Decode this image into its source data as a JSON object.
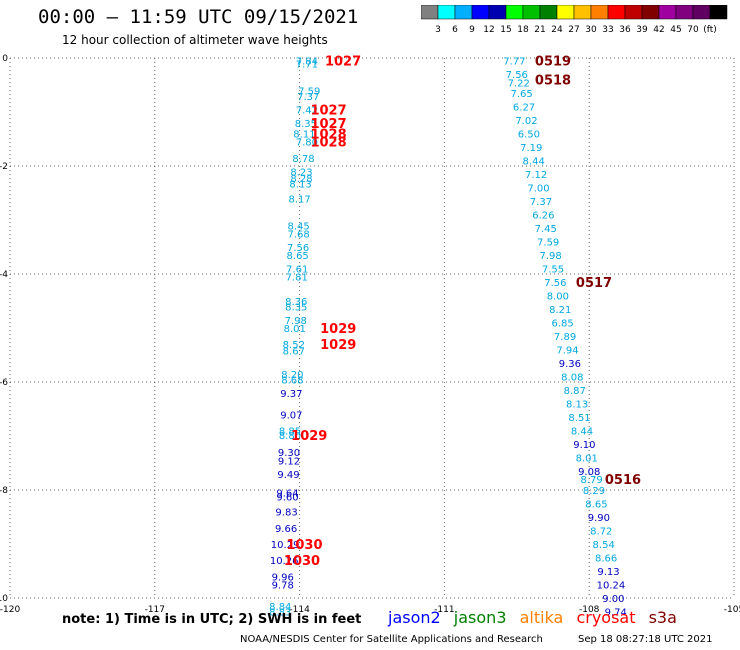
{
  "header": {
    "title": "00:00 – 11:59 UTC 09/15/2021",
    "subtitle": "12 hour collection of altimeter wave heights"
  },
  "colorbar": {
    "colors": [
      "#808080",
      "#00ffff",
      "#00b0ff",
      "#0000ff",
      "#0000b0",
      "#00ff00",
      "#00c000",
      "#008000",
      "#ffff00",
      "#ffc000",
      "#ff8000",
      "#ff0000",
      "#c00000",
      "#800000",
      "#a000a0",
      "#800080",
      "#600060",
      "#000000"
    ],
    "labels": [
      "3",
      "6",
      "9",
      "12",
      "15",
      "18",
      "21",
      "24",
      "27",
      "30",
      "33",
      "36",
      "39",
      "42",
      "45",
      "70",
      "(ft)"
    ]
  },
  "footer": {
    "note": "note: 1) Time is in UTC; 2) SWH is in feet",
    "satellites": [
      {
        "name": "jason2",
        "color": "#0000ff"
      },
      {
        "name": "jason3",
        "color": "#008000"
      },
      {
        "name": "altika",
        "color": "#ff8000"
      },
      {
        "name": "cryosat",
        "color": "#ff0000"
      },
      {
        "name": "s3a",
        "color": "#800000"
      }
    ],
    "credit": "NOAA/NESDIS Center for Satellite Applications and Research",
    "timestamp": "Sep 18 08:27:18 UTC 2021"
  },
  "chart_data": {
    "type": "scatter",
    "title": "00:00 – 11:59 UTC 09/15/2021",
    "xlim": [
      -120,
      -105
    ],
    "ylim": [
      0,
      -10
    ],
    "x_ticks": [
      -120,
      -117,
      -114,
      -111,
      -108,
      -105
    ],
    "y_ticks": [
      0,
      -2,
      -4,
      -6,
      -8,
      -10
    ],
    "grid": "dotted",
    "colors": {
      "light": "#00a8e0",
      "dark": "#0000c0",
      "time": "#ff0000",
      "time_dark": "#800000"
    },
    "series": [
      {
        "name": "track-west",
        "points": [
          {
            "x": -113.85,
            "y": -0.05,
            "v": "7.84",
            "c": "light"
          },
          {
            "x": -113.85,
            "y": -0.1,
            "v": "7.71",
            "c": "light"
          },
          {
            "x": -113.8,
            "y": -0.6,
            "v": "7.59",
            "c": "light"
          },
          {
            "x": -113.82,
            "y": -0.7,
            "v": "7.37",
            "c": "light"
          },
          {
            "x": -113.85,
            "y": -0.95,
            "v": "7.42",
            "c": "light"
          },
          {
            "x": -113.87,
            "y": -1.2,
            "v": "8.35",
            "c": "light"
          },
          {
            "x": -113.9,
            "y": -1.4,
            "v": "8.11",
            "c": "light"
          },
          {
            "x": -113.85,
            "y": -1.55,
            "v": "7.80",
            "c": "light"
          },
          {
            "x": -113.92,
            "y": -1.85,
            "v": "8.78",
            "c": "light"
          },
          {
            "x": -113.96,
            "y": -2.1,
            "v": "8.23",
            "c": "light"
          },
          {
            "x": -113.96,
            "y": -2.22,
            "v": "8.28",
            "c": "light"
          },
          {
            "x": -113.98,
            "y": -2.32,
            "v": "8.13",
            "c": "light"
          },
          {
            "x": -114.0,
            "y": -2.6,
            "v": "8.17",
            "c": "light"
          },
          {
            "x": -114.02,
            "y": -3.1,
            "v": "8.45",
            "c": "light"
          },
          {
            "x": -114.02,
            "y": -3.25,
            "v": "7.68",
            "c": "light"
          },
          {
            "x": -114.03,
            "y": -3.5,
            "v": "7.56",
            "c": "light"
          },
          {
            "x": -114.04,
            "y": -3.65,
            "v": "8.65",
            "c": "light"
          },
          {
            "x": -114.05,
            "y": -3.9,
            "v": "7.61",
            "c": "light"
          },
          {
            "x": -114.06,
            "y": -4.05,
            "v": "7.81",
            "c": "light"
          },
          {
            "x": -114.07,
            "y": -4.5,
            "v": "8.36",
            "c": "light"
          },
          {
            "x": -114.07,
            "y": -4.6,
            "v": "8.35",
            "c": "light"
          },
          {
            "x": -114.08,
            "y": -4.85,
            "v": "7.98",
            "c": "light"
          },
          {
            "x": -114.1,
            "y": -5.0,
            "v": "8.01",
            "c": "light"
          },
          {
            "x": -114.12,
            "y": -5.3,
            "v": "8.52",
            "c": "light"
          },
          {
            "x": -114.12,
            "y": -5.42,
            "v": "8.67",
            "c": "light"
          },
          {
            "x": -114.15,
            "y": -5.85,
            "v": "8.20",
            "c": "light"
          },
          {
            "x": -114.15,
            "y": -5.95,
            "v": "8.68",
            "c": "light"
          },
          {
            "x": -114.17,
            "y": -6.2,
            "v": "9.37",
            "c": "dark"
          },
          {
            "x": -114.17,
            "y": -6.6,
            "v": "9.07",
            "c": "dark"
          },
          {
            "x": -114.2,
            "y": -6.9,
            "v": "8.85",
            "c": "light"
          },
          {
            "x": -114.2,
            "y": -6.98,
            "v": "8.80",
            "c": "light"
          },
          {
            "x": -114.22,
            "y": -7.3,
            "v": "9.30",
            "c": "dark"
          },
          {
            "x": -114.22,
            "y": -7.45,
            "v": "9.12",
            "c": "dark"
          },
          {
            "x": -114.23,
            "y": -7.7,
            "v": "9.49",
            "c": "dark"
          },
          {
            "x": -114.25,
            "y": -8.05,
            "v": "9.64",
            "c": "dark"
          },
          {
            "x": -114.25,
            "y": -8.12,
            "v": "9.60",
            "c": "dark"
          },
          {
            "x": -114.27,
            "y": -8.4,
            "v": "9.83",
            "c": "dark"
          },
          {
            "x": -114.28,
            "y": -8.7,
            "v": "9.66",
            "c": "dark"
          },
          {
            "x": -114.3,
            "y": -9.0,
            "v": "10.29",
            "c": "dark"
          },
          {
            "x": -114.32,
            "y": -9.3,
            "v": "10.26",
            "c": "dark"
          },
          {
            "x": -114.35,
            "y": -9.6,
            "v": "9.96",
            "c": "dark"
          },
          {
            "x": -114.35,
            "y": -9.75,
            "v": "9.78",
            "c": "dark"
          },
          {
            "x": -114.4,
            "y": -10.15,
            "v": "8.84",
            "c": "light"
          },
          {
            "x": -114.4,
            "y": -10.25,
            "v": "8.83",
            "c": "light"
          }
        ]
      },
      {
        "name": "track-east",
        "points": [
          {
            "x": -109.55,
            "y": -0.05,
            "v": "7.77",
            "c": "light"
          },
          {
            "x": -109.5,
            "y": -0.3,
            "v": "7.56",
            "c": "light"
          },
          {
            "x": -109.46,
            "y": -0.45,
            "v": "7.22",
            "c": "light"
          },
          {
            "x": -109.4,
            "y": -0.65,
            "v": "7.65",
            "c": "light"
          },
          {
            "x": -109.35,
            "y": -0.9,
            "v": "6.27",
            "c": "light"
          },
          {
            "x": -109.3,
            "y": -1.15,
            "v": "7.02",
            "c": "light"
          },
          {
            "x": -109.25,
            "y": -1.4,
            "v": "6.50",
            "c": "light"
          },
          {
            "x": -109.2,
            "y": -1.65,
            "v": "7.19",
            "c": "light"
          },
          {
            "x": -109.15,
            "y": -1.9,
            "v": "8.44",
            "c": "light"
          },
          {
            "x": -109.1,
            "y": -2.15,
            "v": "7.12",
            "c": "light"
          },
          {
            "x": -109.05,
            "y": -2.4,
            "v": "7.00",
            "c": "light"
          },
          {
            "x": -109.0,
            "y": -2.65,
            "v": "7.37",
            "c": "light"
          },
          {
            "x": -108.95,
            "y": -2.9,
            "v": "6.26",
            "c": "light"
          },
          {
            "x": -108.9,
            "y": -3.15,
            "v": "7.45",
            "c": "light"
          },
          {
            "x": -108.85,
            "y": -3.4,
            "v": "7.59",
            "c": "light"
          },
          {
            "x": -108.8,
            "y": -3.65,
            "v": "7.98",
            "c": "light"
          },
          {
            "x": -108.75,
            "y": -3.9,
            "v": "7.55",
            "c": "light"
          },
          {
            "x": -108.7,
            "y": -4.15,
            "v": "7.56",
            "c": "light"
          },
          {
            "x": -108.65,
            "y": -4.4,
            "v": "8.00",
            "c": "light"
          },
          {
            "x": -108.6,
            "y": -4.65,
            "v": "8.21",
            "c": "light"
          },
          {
            "x": -108.55,
            "y": -4.9,
            "v": "6.85",
            "c": "light"
          },
          {
            "x": -108.5,
            "y": -5.15,
            "v": "7.89",
            "c": "light"
          },
          {
            "x": -108.45,
            "y": -5.4,
            "v": "7.94",
            "c": "light"
          },
          {
            "x": -108.4,
            "y": -5.65,
            "v": "9.36",
            "c": "dark"
          },
          {
            "x": -108.35,
            "y": -5.9,
            "v": "8.08",
            "c": "light"
          },
          {
            "x": -108.3,
            "y": -6.15,
            "v": "8.87",
            "c": "light"
          },
          {
            "x": -108.25,
            "y": -6.4,
            "v": "8.13",
            "c": "light"
          },
          {
            "x": -108.2,
            "y": -6.65,
            "v": "8.51",
            "c": "light"
          },
          {
            "x": -108.15,
            "y": -6.9,
            "v": "8.44",
            "c": "light"
          },
          {
            "x": -108.1,
            "y": -7.15,
            "v": "9.10",
            "c": "dark"
          },
          {
            "x": -108.05,
            "y": -7.4,
            "v": "8.01",
            "c": "light"
          },
          {
            "x": -108.0,
            "y": -7.65,
            "v": "9.08",
            "c": "dark"
          },
          {
            "x": -107.95,
            "y": -7.8,
            "v": "8.79",
            "c": "light"
          },
          {
            "x": -107.9,
            "y": -8.0,
            "v": "8.29",
            "c": "light"
          },
          {
            "x": -107.85,
            "y": -8.25,
            "v": "8.65",
            "c": "light"
          },
          {
            "x": -107.8,
            "y": -8.5,
            "v": "9.90",
            "c": "dark"
          },
          {
            "x": -107.75,
            "y": -8.75,
            "v": "8.72",
            "c": "light"
          },
          {
            "x": -107.7,
            "y": -9.0,
            "v": "8.54",
            "c": "light"
          },
          {
            "x": -107.65,
            "y": -9.25,
            "v": "8.66",
            "c": "light"
          },
          {
            "x": -107.6,
            "y": -9.5,
            "v": "9.13",
            "c": "dark"
          },
          {
            "x": -107.55,
            "y": -9.75,
            "v": "10.24",
            "c": "dark"
          },
          {
            "x": -107.5,
            "y": -10.0,
            "v": "9.00",
            "c": "dark"
          },
          {
            "x": -107.45,
            "y": -10.25,
            "v": "9.74",
            "c": "dark"
          }
        ]
      }
    ],
    "time_labels": [
      {
        "x": -113.1,
        "y": -0.05,
        "v": "1027",
        "c": "time"
      },
      {
        "x": -113.4,
        "y": -0.95,
        "v": "1027",
        "c": "time"
      },
      {
        "x": -113.4,
        "y": -1.2,
        "v": "1027",
        "c": "time"
      },
      {
        "x": -113.4,
        "y": -1.4,
        "v": "1028",
        "c": "time"
      },
      {
        "x": -113.4,
        "y": -1.55,
        "v": "1028",
        "c": "time"
      },
      {
        "x": -113.2,
        "y": -5.0,
        "v": "1029",
        "c": "time"
      },
      {
        "x": -113.2,
        "y": -5.3,
        "v": "1029",
        "c": "time"
      },
      {
        "x": -113.8,
        "y": -6.98,
        "v": "1029",
        "c": "time"
      },
      {
        "x": -113.9,
        "y": -9.0,
        "v": "1030",
        "c": "time"
      },
      {
        "x": -113.95,
        "y": -9.3,
        "v": "1030",
        "c": "time"
      },
      {
        "x": -108.75,
        "y": -0.05,
        "v": "0519",
        "c": "time_dark"
      },
      {
        "x": -108.75,
        "y": -0.4,
        "v": "0518",
        "c": "time_dark"
      },
      {
        "x": -107.9,
        "y": -4.15,
        "v": "0517",
        "c": "time_dark"
      },
      {
        "x": -107.3,
        "y": -7.8,
        "v": "0516",
        "c": "time_dark"
      }
    ]
  }
}
